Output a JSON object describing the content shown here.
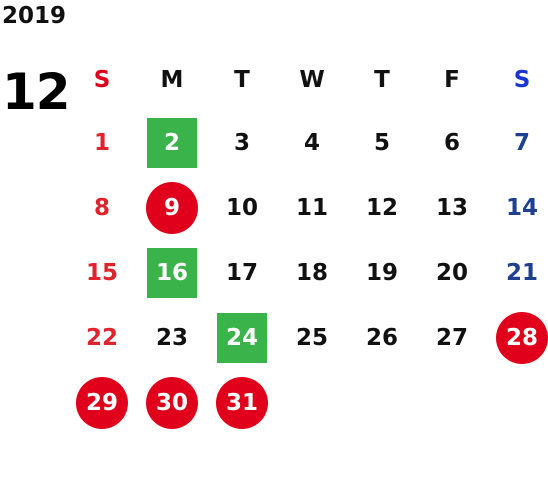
{
  "calendar": {
    "year": "2019",
    "month": "12",
    "weekdays": [
      "S",
      "M",
      "T",
      "W",
      "T",
      "F",
      "S"
    ],
    "weeks": [
      [
        {
          "label": "1",
          "mark": "none"
        },
        {
          "label": "2",
          "mark": "green"
        },
        {
          "label": "3",
          "mark": "none"
        },
        {
          "label": "4",
          "mark": "none"
        },
        {
          "label": "5",
          "mark": "none"
        },
        {
          "label": "6",
          "mark": "none"
        },
        {
          "label": "7",
          "mark": "none"
        }
      ],
      [
        {
          "label": "8",
          "mark": "none"
        },
        {
          "label": "9",
          "mark": "red"
        },
        {
          "label": "10",
          "mark": "none"
        },
        {
          "label": "11",
          "mark": "none"
        },
        {
          "label": "12",
          "mark": "none"
        },
        {
          "label": "13",
          "mark": "none"
        },
        {
          "label": "14",
          "mark": "none"
        }
      ],
      [
        {
          "label": "15",
          "mark": "none"
        },
        {
          "label": "16",
          "mark": "green"
        },
        {
          "label": "17",
          "mark": "none"
        },
        {
          "label": "18",
          "mark": "none"
        },
        {
          "label": "19",
          "mark": "none"
        },
        {
          "label": "20",
          "mark": "none"
        },
        {
          "label": "21",
          "mark": "none"
        }
      ],
      [
        {
          "label": "22",
          "mark": "none"
        },
        {
          "label": "23",
          "mark": "none"
        },
        {
          "label": "24",
          "mark": "green"
        },
        {
          "label": "25",
          "mark": "none"
        },
        {
          "label": "26",
          "mark": "none"
        },
        {
          "label": "27",
          "mark": "none"
        },
        {
          "label": "28",
          "mark": "red"
        }
      ],
      [
        {
          "label": "29",
          "mark": "red"
        },
        {
          "label": "30",
          "mark": "red"
        },
        {
          "label": "31",
          "mark": "red"
        },
        {
          "label": "",
          "mark": "none"
        },
        {
          "label": "",
          "mark": "none"
        },
        {
          "label": "",
          "mark": "none"
        },
        {
          "label": "",
          "mark": "none"
        }
      ]
    ]
  },
  "colors": {
    "sunday": "#e0232c",
    "saturday": "#1f3f91",
    "green_mark": "#3ab34a",
    "red_mark": "#e0001b",
    "text": "#111111"
  }
}
